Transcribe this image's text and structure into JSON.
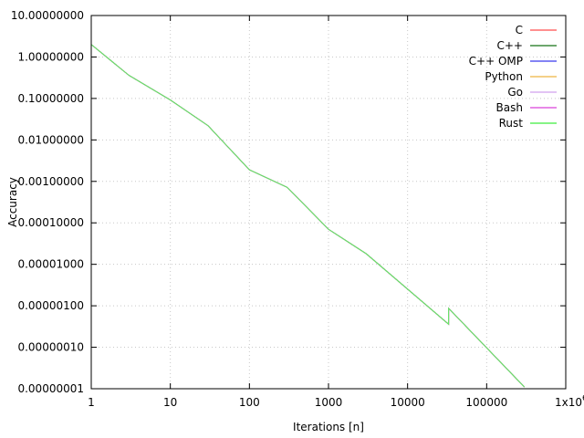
{
  "chart_data": {
    "type": "line",
    "title": "",
    "xlabel": "Iterations [n]",
    "ylabel": "Accuracy",
    "x_scale": "log",
    "y_scale": "log",
    "xlim": [
      1,
      1000000
    ],
    "ylim": [
      1e-08,
      10
    ],
    "grid": true,
    "legend_position": "top-right",
    "x_ticks": [
      {
        "value": 1,
        "label": "1"
      },
      {
        "value": 10,
        "label": "10"
      },
      {
        "value": 100,
        "label": "100"
      },
      {
        "value": 1000,
        "label": "1000"
      },
      {
        "value": 10000,
        "label": "10000"
      },
      {
        "value": 100000,
        "label": "100000"
      },
      {
        "value": 1000000,
        "label": "1x10",
        "superscript": "6"
      }
    ],
    "y_ticks": [
      {
        "value": 10,
        "label": "10.00000000"
      },
      {
        "value": 1,
        "label": "1.00000000"
      },
      {
        "value": 0.1,
        "label": "0.10000000"
      },
      {
        "value": 0.01,
        "label": "0.01000000"
      },
      {
        "value": 0.001,
        "label": "0.00100000"
      },
      {
        "value": 0.0001,
        "label": "0.00010000"
      },
      {
        "value": 1e-05,
        "label": "0.00001000"
      },
      {
        "value": 1e-06,
        "label": "0.00000100"
      },
      {
        "value": 1e-07,
        "label": "0.00000010"
      },
      {
        "value": 1e-08,
        "label": "0.00000001"
      }
    ],
    "series": [
      {
        "name": "C",
        "color": "#ff6b6b",
        "x": [
          1,
          3,
          10,
          30,
          100,
          300,
          1000,
          3000,
          33000,
          33001,
          300000
        ],
        "y": [
          2.0,
          0.36,
          0.092,
          0.022,
          0.0019,
          0.00072,
          7e-05,
          1.8e-05,
          3.6e-07,
          8.7e-07,
          1.1e-08
        ]
      },
      {
        "name": "C++",
        "color": "#3d8a3d",
        "x": [
          1,
          3,
          10,
          30,
          100,
          300,
          1000,
          3000,
          33000,
          33001,
          300000
        ],
        "y": [
          2.0,
          0.36,
          0.092,
          0.022,
          0.0019,
          0.00072,
          7e-05,
          1.8e-05,
          3.6e-07,
          8.7e-07,
          1.1e-08
        ]
      },
      {
        "name": "C++ OMP",
        "color": "#5a5af0",
        "x": [
          1,
          3,
          10,
          30,
          100,
          300,
          1000,
          3000,
          33000,
          33001,
          300000
        ],
        "y": [
          2.0,
          0.36,
          0.092,
          0.022,
          0.0019,
          0.00072,
          7e-05,
          1.8e-05,
          3.6e-07,
          8.7e-07,
          1.1e-08
        ]
      },
      {
        "name": "Python",
        "color": "#f0c060",
        "x": [
          1,
          3,
          10,
          30,
          100,
          300,
          1000,
          3000,
          33000,
          33001,
          300000
        ],
        "y": [
          2.0,
          0.36,
          0.092,
          0.022,
          0.0019,
          0.00072,
          7e-05,
          1.8e-05,
          3.6e-07,
          8.7e-07,
          1.1e-08
        ]
      },
      {
        "name": "Go",
        "color": "#d8b0f0",
        "x": [
          1,
          3,
          10,
          30,
          100,
          300,
          1000,
          3000,
          33000,
          33001,
          300000
        ],
        "y": [
          2.0,
          0.36,
          0.092,
          0.022,
          0.0019,
          0.00072,
          7e-05,
          1.8e-05,
          3.6e-07,
          8.7e-07,
          1.1e-08
        ]
      },
      {
        "name": "Bash",
        "color": "#e060e0",
        "x": [
          1,
          3,
          10,
          30,
          100,
          300,
          1000,
          3000,
          33000,
          33001,
          300000
        ],
        "y": [
          2.0,
          0.36,
          0.092,
          0.022,
          0.0019,
          0.00072,
          7e-05,
          1.8e-05,
          3.6e-07,
          8.7e-07,
          1.1e-08
        ]
      },
      {
        "name": "Rust",
        "color": "#5ef05e",
        "x": [
          1,
          3,
          10,
          30,
          100,
          300,
          1000,
          3000,
          33000,
          33001,
          300000
        ],
        "y": [
          2.0,
          0.36,
          0.092,
          0.022,
          0.0019,
          0.00072,
          7e-05,
          1.8e-05,
          3.6e-07,
          8.7e-07,
          1.1e-08
        ]
      }
    ]
  }
}
